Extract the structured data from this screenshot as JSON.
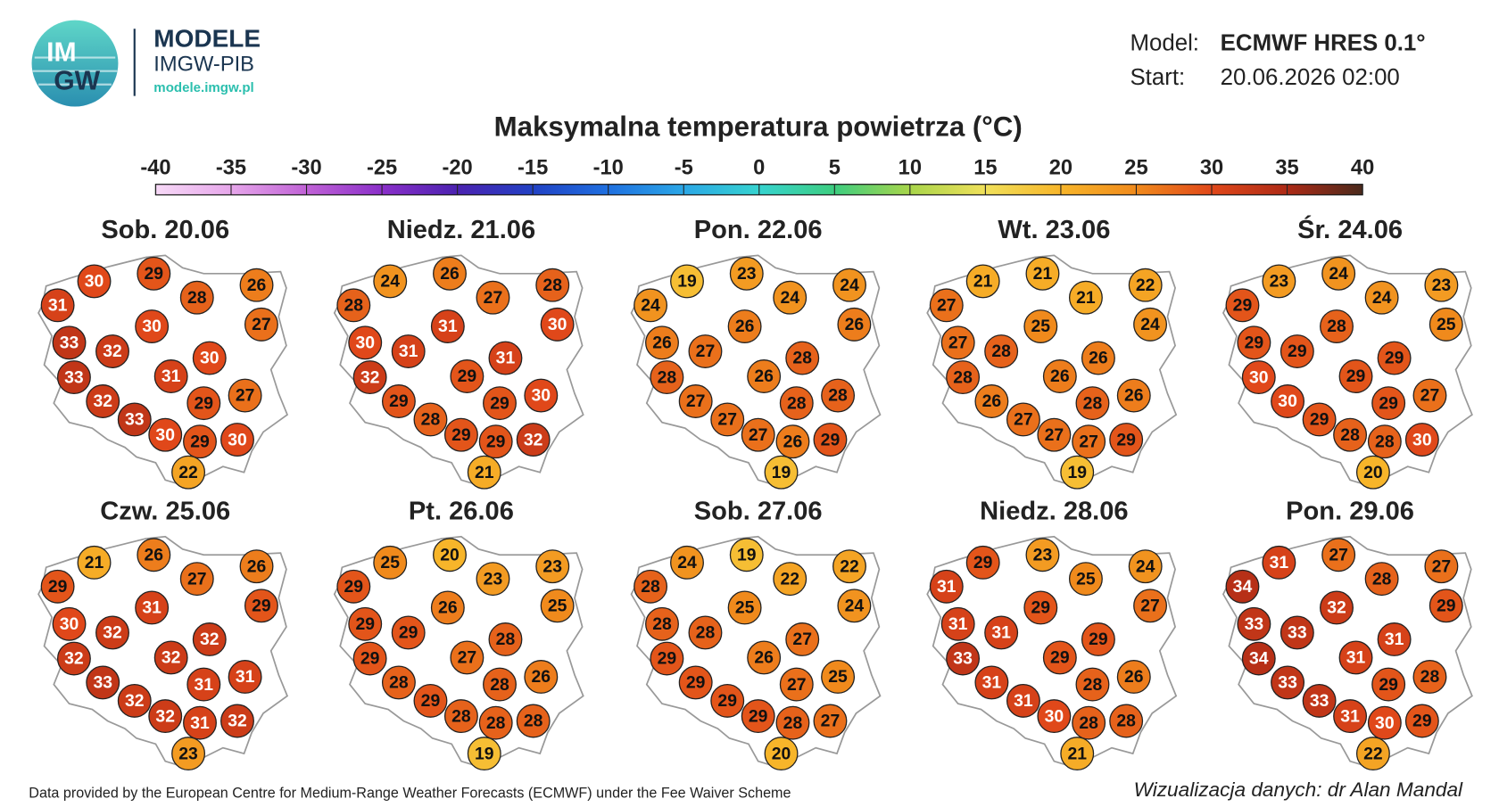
{
  "header": {
    "logo": [
      "IM",
      "GW"
    ],
    "brand": "MODELE",
    "org": "IMGW-PIB",
    "url": "modele.imgw.pl"
  },
  "info": {
    "model_label": "Model:",
    "model": "ECMWF HRES 0.1°",
    "start_label": "Start:",
    "start": "20.06.2026 02:00"
  },
  "title": "Maksymalna temperatura powietrza (°C)",
  "colorbar": {
    "lim": [
      -40,
      40
    ],
    "ticks": [
      -40,
      -35,
      -30,
      -25,
      -20,
      -15,
      -10,
      -5,
      0,
      5,
      10,
      15,
      20,
      25,
      30,
      35,
      40
    ],
    "colors": [
      "#f7d9f7",
      "#e6a6ea",
      "#c062d6",
      "#8a2fc9",
      "#4b22b0",
      "#2141c4",
      "#1f70e0",
      "#2ba7e6",
      "#36d3cf",
      "#3dcd7f",
      "#a8d54a",
      "#f0e05a",
      "#f7b52a",
      "#f08a1c",
      "#e0481a",
      "#ad2a16",
      "#4a2a1c"
    ]
  },
  "panels": [
    {
      "title": "Sob. 20.06",
      "values": [
        31,
        30,
        29,
        28,
        26,
        27,
        30,
        33,
        32,
        33,
        31,
        30,
        32,
        29,
        27,
        33,
        30,
        29,
        30,
        22
      ]
    },
    {
      "title": "Niedz. 21.06",
      "values": [
        28,
        24,
        26,
        27,
        28,
        30,
        31,
        30,
        31,
        32,
        29,
        31,
        29,
        29,
        30,
        28,
        29,
        29,
        32,
        21
      ]
    },
    {
      "title": "Pon. 22.06",
      "values": [
        24,
        19,
        23,
        24,
        24,
        26,
        26,
        26,
        27,
        28,
        26,
        28,
        27,
        28,
        28,
        27,
        27,
        26,
        29,
        19
      ]
    },
    {
      "title": "Wt. 23.06",
      "values": [
        27,
        21,
        21,
        21,
        22,
        24,
        25,
        27,
        28,
        28,
        26,
        26,
        26,
        28,
        26,
        27,
        27,
        27,
        29,
        19
      ]
    },
    {
      "title": "Śr. 24.06",
      "values": [
        29,
        23,
        24,
        24,
        23,
        25,
        28,
        29,
        29,
        30,
        29,
        29,
        30,
        29,
        27,
        29,
        28,
        28,
        30,
        20
      ]
    },
    {
      "title": "Czw. 25.06",
      "values": [
        29,
        21,
        26,
        27,
        26,
        29,
        31,
        30,
        32,
        32,
        32,
        32,
        33,
        31,
        31,
        32,
        32,
        31,
        32,
        23
      ]
    },
    {
      "title": "Pt. 26.06",
      "values": [
        29,
        25,
        20,
        23,
        23,
        25,
        26,
        29,
        29,
        29,
        27,
        28,
        28,
        28,
        26,
        29,
        28,
        28,
        28,
        19
      ]
    },
    {
      "title": "Sob. 27.06",
      "values": [
        28,
        24,
        19,
        22,
        22,
        24,
        25,
        28,
        28,
        29,
        26,
        27,
        29,
        27,
        25,
        29,
        29,
        28,
        27,
        20
      ]
    },
    {
      "title": "Niedz. 28.06",
      "values": [
        31,
        29,
        23,
        25,
        24,
        27,
        29,
        31,
        31,
        33,
        29,
        29,
        31,
        28,
        26,
        31,
        30,
        28,
        28,
        21
      ]
    },
    {
      "title": "Pon. 29.06",
      "values": [
        34,
        31,
        27,
        28,
        27,
        29,
        32,
        33,
        33,
        34,
        31,
        31,
        33,
        29,
        28,
        33,
        31,
        30,
        29,
        22
      ]
    }
  ],
  "footer": {
    "source": "Data provided by the European Centre for Medium-Range Weather Forecasts (ECMWF) under the Fee Waiver Scheme",
    "author": "Wizualizacja danych: dr Alan Mandal"
  }
}
